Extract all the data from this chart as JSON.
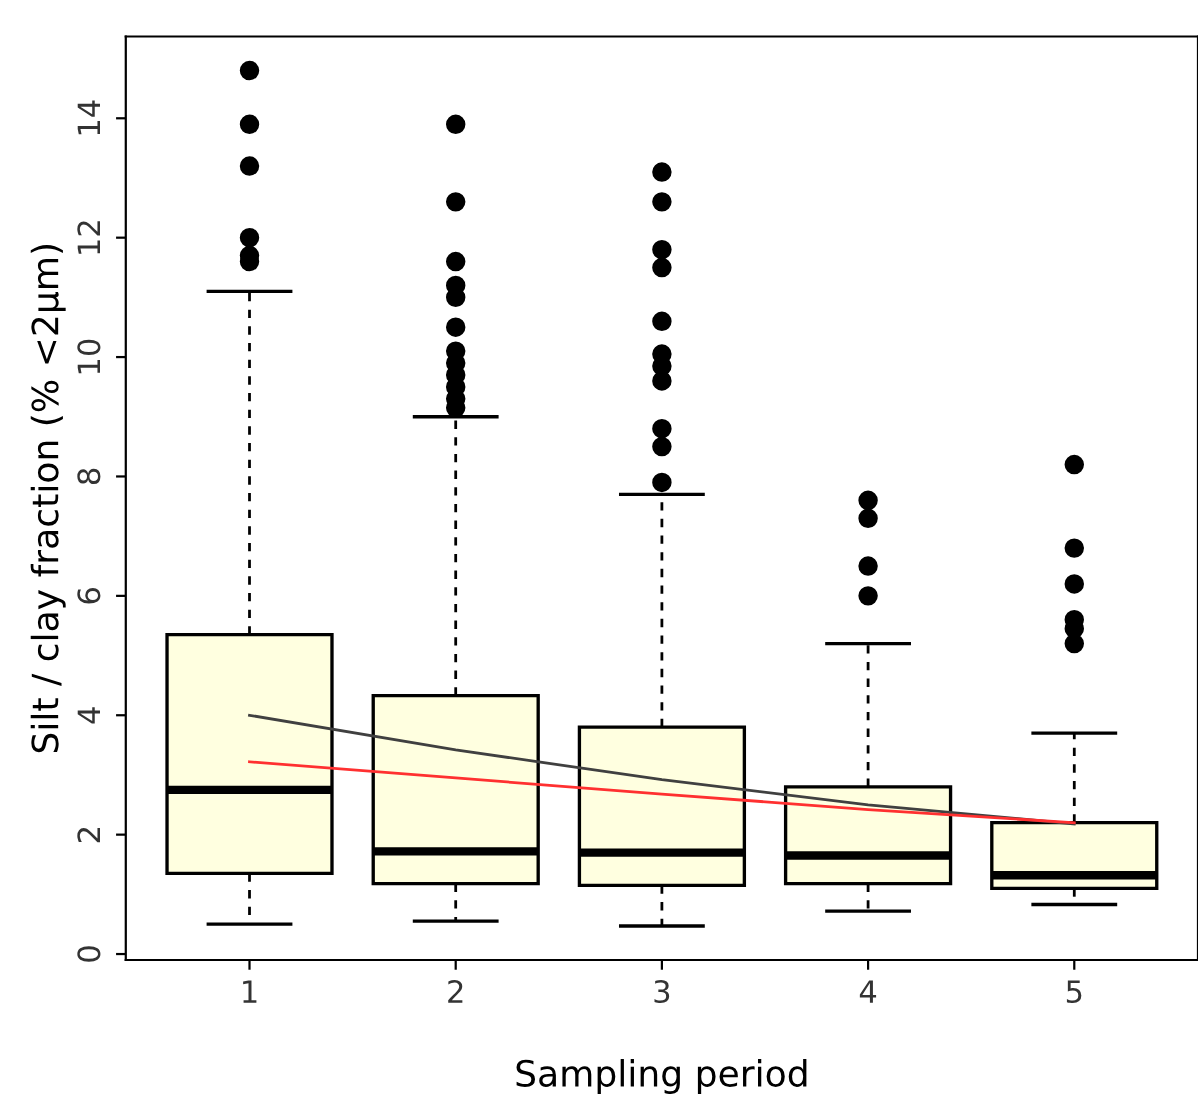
{
  "chart_data": {
    "type": "box",
    "xlabel": "Sampling period",
    "ylabel": "Silt / clay fraction (% <2µm)",
    "categories": [
      "1",
      "2",
      "3",
      "4",
      "5"
    ],
    "ylim": [
      -0.1,
      15.37
    ],
    "yticks": [
      0,
      2,
      4,
      6,
      8,
      10,
      12,
      14
    ],
    "grid": false,
    "legend": false,
    "series": [
      {
        "color": "#ffffe0",
        "boxes": [
          {
            "low": 0.5,
            "q1": 1.35,
            "median": 2.75,
            "q3": 5.35,
            "high": 11.1,
            "outliers": [
              14.8,
              13.9,
              13.2,
              12.0,
              11.7,
              11.6
            ]
          },
          {
            "low": 0.55,
            "q1": 1.18,
            "median": 1.72,
            "q3": 4.33,
            "high": 9.0,
            "outliers": [
              13.9,
              12.6,
              11.6,
              11.2,
              11.0,
              10.5,
              10.1,
              9.9,
              9.7,
              9.5,
              9.3,
              9.15
            ]
          },
          {
            "low": 0.47,
            "q1": 1.15,
            "median": 1.7,
            "q3": 3.8,
            "high": 7.7,
            "outliers": [
              13.1,
              12.6,
              11.8,
              11.5,
              10.6,
              10.05,
              9.85,
              9.6,
              8.8,
              8.5,
              7.9
            ]
          },
          {
            "low": 0.72,
            "q1": 1.18,
            "median": 1.65,
            "q3": 2.8,
            "high": 5.2,
            "outliers": [
              7.6,
              7.3,
              6.5,
              6.0
            ]
          },
          {
            "low": 0.83,
            "q1": 1.1,
            "median": 1.32,
            "q3": 2.2,
            "high": 3.7,
            "outliers": [
              8.2,
              6.8,
              6.2,
              5.6,
              5.45,
              5.2
            ]
          }
        ]
      },
      {
        "type": "line",
        "color": "#404040",
        "x": [
          "1",
          "2",
          "3",
          "4",
          "5"
        ],
        "values": [
          4.0,
          3.42,
          2.92,
          2.5,
          2.18
        ]
      },
      {
        "type": "line",
        "color": "#ff3030",
        "x": [
          "1",
          "2",
          "3",
          "4",
          "5"
        ],
        "values": [
          3.22,
          2.95,
          2.68,
          2.42,
          2.2
        ]
      }
    ]
  }
}
